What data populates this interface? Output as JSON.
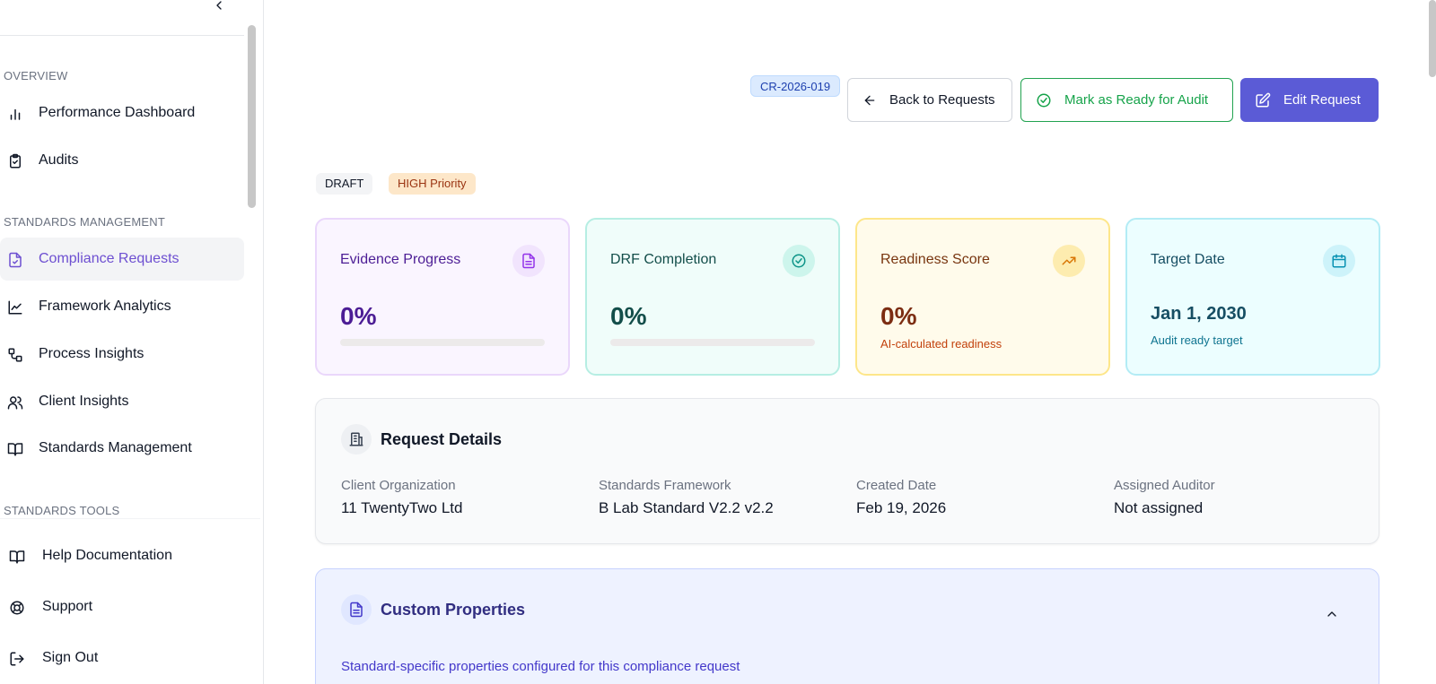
{
  "sidebar": {
    "sections": {
      "overview": "OVERVIEW",
      "standards_management": "STANDARDS MANAGEMENT",
      "standards_tools": "STANDARDS TOOLS"
    },
    "items": [
      {
        "label": "Performance Dashboard",
        "icon": "bar-chart-icon"
      },
      {
        "label": "Audits",
        "icon": "clipboard-check-icon"
      },
      {
        "label": "Compliance Requests",
        "icon": "file-check-icon",
        "active": true
      },
      {
        "label": "Framework Analytics",
        "icon": "line-chart-icon"
      },
      {
        "label": "Process Insights",
        "icon": "workflow-icon"
      },
      {
        "label": "Client Insights",
        "icon": "users-icon"
      },
      {
        "label": "Standards Management",
        "icon": "book-open-icon"
      }
    ],
    "bottom_items": [
      {
        "label": "Help Documentation",
        "icon": "book-open-icon"
      },
      {
        "label": "Support",
        "icon": "life-buoy-icon"
      },
      {
        "label": "Sign Out",
        "icon": "log-out-icon"
      }
    ]
  },
  "header": {
    "request_id": "CR-2026-019",
    "back_label": "Back to Requests",
    "ready_label": "Mark as Ready for Audit",
    "edit_label": "Edit Request"
  },
  "status": {
    "draft": "DRAFT",
    "priority": "HIGH Priority"
  },
  "cards": {
    "evidence": {
      "title": "Evidence Progress",
      "value": "0%",
      "progress": 0.0
    },
    "drf": {
      "title": "DRF Completion",
      "value": "0%",
      "progress": 0.0
    },
    "readiness": {
      "title": "Readiness Score",
      "value": "0%",
      "sub": "AI-calculated readiness"
    },
    "target": {
      "title": "Target Date",
      "value": "Jan 1, 2030",
      "sub": "Audit ready target"
    }
  },
  "details": {
    "title": "Request Details",
    "fields": [
      {
        "label": "Client Organization",
        "value": "11 TwentyTwo Ltd"
      },
      {
        "label": "Standards Framework",
        "value": "B Lab Standard V2.2 v2.2"
      },
      {
        "label": "Created Date",
        "value": "Feb 19, 2026"
      },
      {
        "label": "Assigned Auditor",
        "value": "Not assigned"
      }
    ]
  },
  "custom_properties": {
    "title": "Custom Properties",
    "description": "Standard-specific properties configured for this compliance request"
  },
  "colors": {
    "accent": "#5b5bd6",
    "active_nav": "#6d4fd1",
    "ready_green": "#16a34a"
  }
}
